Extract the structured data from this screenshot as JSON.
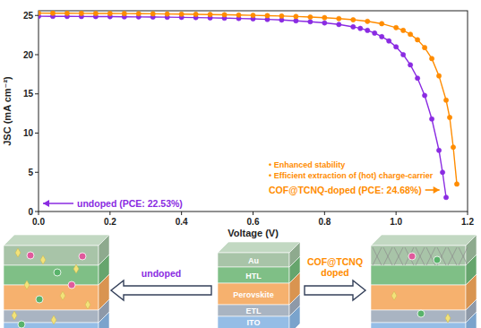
{
  "chart_data": {
    "type": "line",
    "y_label": "JSC (mA cm⁻²)",
    "x_label": "Voltage (V)",
    "xlim": [
      0,
      1.2
    ],
    "ylim": [
      0,
      25.6
    ],
    "xticks": [
      {
        "value": 0,
        "label": "0.0"
      },
      0.2,
      0.4,
      0.6,
      0.8,
      {
        "value": 1,
        "label": "1.0"
      },
      1.2
    ],
    "yticks": [
      0,
      5,
      10,
      15,
      20,
      25
    ],
    "grid": false,
    "marker": "circle",
    "annotations": [
      "• Enhanced stability",
      "• Efficient extraction of (hot) charge-carrier"
    ],
    "series": [
      {
        "name": "undoped (PCE: 22.53%)",
        "color": "#8a2be2",
        "x": [
          0,
          0.04,
          0.08,
          0.12,
          0.16,
          0.2,
          0.24,
          0.28,
          0.32,
          0.36,
          0.4,
          0.44,
          0.48,
          0.52,
          0.56,
          0.6,
          0.64,
          0.68,
          0.72,
          0.76,
          0.8,
          0.84,
          0.88,
          0.9,
          0.92,
          0.94,
          0.96,
          0.98,
          1.0,
          1.02,
          1.04,
          1.06,
          1.08,
          1.1,
          1.12,
          1.13,
          1.14
        ],
        "values": [
          24.9,
          24.89,
          24.88,
          24.87,
          24.86,
          24.85,
          24.83,
          24.82,
          24.8,
          24.78,
          24.76,
          24.73,
          24.7,
          24.66,
          24.62,
          24.57,
          24.5,
          24.42,
          24.32,
          24.2,
          24.05,
          23.85,
          23.55,
          23.35,
          23.1,
          22.75,
          22.3,
          21.75,
          21.0,
          20.0,
          18.7,
          17.0,
          14.8,
          11.8,
          7.8,
          5.0,
          1.8
        ]
      },
      {
        "name": "COF@TCNQ-doped (PCE: 24.68%)",
        "color": "#ff8c00",
        "x": [
          0,
          0.04,
          0.08,
          0.12,
          0.16,
          0.2,
          0.24,
          0.28,
          0.32,
          0.36,
          0.4,
          0.44,
          0.48,
          0.52,
          0.56,
          0.6,
          0.64,
          0.68,
          0.72,
          0.76,
          0.8,
          0.84,
          0.88,
          0.92,
          0.96,
          1.0,
          1.02,
          1.04,
          1.06,
          1.08,
          1.1,
          1.12,
          1.14,
          1.15,
          1.16,
          1.17
        ],
        "values": [
          25.3,
          25.29,
          25.28,
          25.27,
          25.26,
          25.25,
          25.24,
          25.23,
          25.21,
          25.19,
          25.17,
          25.15,
          25.12,
          25.09,
          25.06,
          25.02,
          24.98,
          24.93,
          24.87,
          24.8,
          24.72,
          24.6,
          24.45,
          24.25,
          23.95,
          23.45,
          23.1,
          22.6,
          21.9,
          20.9,
          19.5,
          17.3,
          14.2,
          12.0,
          8.2,
          3.5
        ]
      }
    ]
  },
  "diagram": {
    "layers": [
      "Au",
      "HTL",
      "Perovskite",
      "ETL",
      "ITO"
    ],
    "left_arrow": "undoped",
    "right_arrow": "COF@TCNQ doped"
  }
}
